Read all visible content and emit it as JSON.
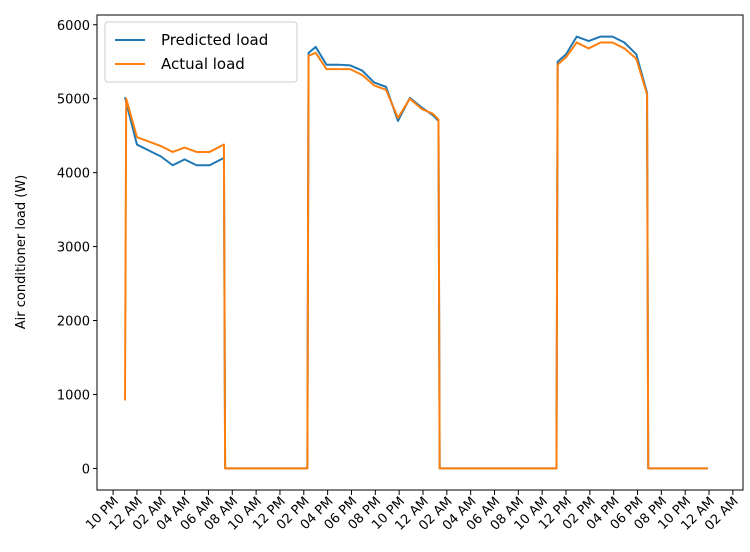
{
  "chart_data": {
    "type": "line",
    "ylabel": "Air conditioner load (W)",
    "x": [
      1.0,
      1.1,
      2.0,
      3.0,
      4.0,
      5.0,
      6.0,
      7.0,
      8.1,
      9.3,
      9.4,
      16.3,
      16.4,
      17.0,
      17.9,
      18.9,
      19.9,
      20.9,
      21.9,
      22.9,
      23.9,
      24.9,
      25.9,
      26.8,
      27.3,
      27.4,
      37.2,
      37.3,
      38.0,
      38.9,
      39.9,
      40.9,
      41.9,
      42.9,
      43.9,
      44.8,
      44.9,
      49.9
    ],
    "series": [
      {
        "name": "Predicted load",
        "color": "#1f77b4",
        "values": [
          5020,
          4950,
          4380,
          4300,
          4220,
          4100,
          4180,
          4100,
          4100,
          4200,
          0,
          0,
          5620,
          5700,
          5460,
          5460,
          5450,
          5380,
          5220,
          5160,
          4700,
          5010,
          4880,
          4780,
          4700,
          0,
          0,
          5500,
          5600,
          5840,
          5780,
          5840,
          5840,
          5760,
          5600,
          5080,
          0,
          0
        ]
      },
      {
        "name": "Actual load",
        "color": "#ff7f0e",
        "values": [
          920,
          5000,
          4480,
          4420,
          4360,
          4280,
          4340,
          4280,
          4280,
          4380,
          0,
          0,
          5580,
          5620,
          5400,
          5400,
          5400,
          5320,
          5180,
          5120,
          4740,
          5000,
          4860,
          4800,
          4720,
          0,
          0,
          5460,
          5560,
          5760,
          5680,
          5760,
          5760,
          5680,
          5540,
          5060,
          0,
          0
        ]
      }
    ],
    "xlim": [
      -1.35,
      52.85
    ],
    "xticks": [
      {
        "value": 0,
        "label": "10 PM"
      },
      {
        "value": 2,
        "label": "12 AM"
      },
      {
        "value": 4,
        "label": "02 AM"
      },
      {
        "value": 6,
        "label": "04 AM"
      },
      {
        "value": 8,
        "label": "06 AM"
      },
      {
        "value": 10,
        "label": "08 AM"
      },
      {
        "value": 12,
        "label": "10 AM"
      },
      {
        "value": 14,
        "label": "12 PM"
      },
      {
        "value": 16,
        "label": "02 PM"
      },
      {
        "value": 18,
        "label": "04 PM"
      },
      {
        "value": 20,
        "label": "06 PM"
      },
      {
        "value": 22,
        "label": "08 PM"
      },
      {
        "value": 24,
        "label": "10 PM"
      },
      {
        "value": 26,
        "label": "12 AM"
      },
      {
        "value": 28,
        "label": "02 AM"
      },
      {
        "value": 30,
        "label": "04 AM"
      },
      {
        "value": 32,
        "label": "06 AM"
      },
      {
        "value": 34,
        "label": "08 AM"
      },
      {
        "value": 36,
        "label": "10 AM"
      },
      {
        "value": 38,
        "label": "12 PM"
      },
      {
        "value": 40,
        "label": "02 PM"
      },
      {
        "value": 42,
        "label": "04 PM"
      },
      {
        "value": 44,
        "label": "06 PM"
      },
      {
        "value": 46,
        "label": "08 PM"
      },
      {
        "value": 48,
        "label": "10 PM"
      },
      {
        "value": 50,
        "label": "12 AM"
      },
      {
        "value": 52,
        "label": "02 AM"
      }
    ],
    "ylim": [
      -292,
      6132
    ],
    "yticks": [
      0,
      1000,
      2000,
      3000,
      4000,
      5000,
      6000
    ],
    "grid": false,
    "legend": "upper left"
  }
}
